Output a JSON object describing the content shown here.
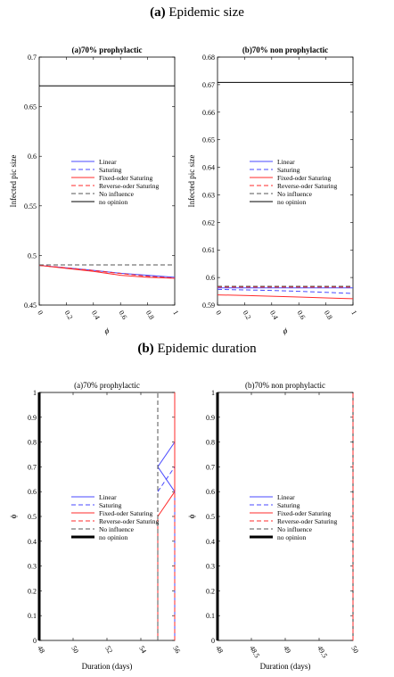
{
  "figure": {
    "heading_a_letter": "(a)",
    "heading_a_text": "Epidemic size",
    "heading_b_letter": "(b)",
    "heading_b_text": "Epidemic duration"
  },
  "legend_styles": [
    {
      "color": "#4a4aff",
      "dash": "",
      "width": 1
    },
    {
      "color": "#4a4aff",
      "dash": "5,3",
      "width": 1
    },
    {
      "color": "#ff2b2b",
      "dash": "",
      "width": 1
    },
    {
      "color": "#ff2b2b",
      "dash": "5,3",
      "width": 1
    },
    {
      "color": "#555555",
      "dash": "5,3",
      "width": 1
    },
    {
      "color": "#000000",
      "dash": "",
      "width": 1
    }
  ],
  "chart_data": [
    {
      "type": "line",
      "title": "(a)70% prophylactic",
      "xlabel": "ϕ",
      "ylabel": "Infected pic size",
      "xlim": [
        0,
        1
      ],
      "ylim": [
        0.45,
        0.7
      ],
      "xticks": [
        0,
        0.2,
        0.4,
        0.6,
        0.8,
        1
      ],
      "xtick_labels": [
        "0",
        "0.2",
        "0.4",
        "0.6",
        "0.8",
        "1"
      ],
      "yticks": [
        0.45,
        0.5,
        0.55,
        0.6,
        0.65,
        0.7
      ],
      "ytick_labels": [
        "0.45",
        "0.5",
        "0.55",
        "0.6",
        "0.65",
        "0.7"
      ],
      "legend": [
        "Linear",
        "Saturing",
        "Fixed-oder Saturing",
        "Reverse-oder Saturing",
        "No influence",
        "no opinion"
      ],
      "series": [
        {
          "name": "Linear",
          "x": [
            0,
            0.2,
            0.4,
            0.6,
            0.8,
            1
          ],
          "y": [
            0.49,
            0.4875,
            0.485,
            0.482,
            0.48,
            0.478
          ]
        },
        {
          "name": "Saturing",
          "x": [
            0,
            0.2,
            0.4,
            0.6,
            0.8,
            1
          ],
          "y": [
            0.49,
            0.4875,
            0.485,
            0.482,
            0.4795,
            0.477
          ]
        },
        {
          "name": "Fixed-oder Saturing",
          "x": [
            0,
            0.2,
            0.4,
            0.6,
            0.8,
            1
          ],
          "y": [
            0.49,
            0.487,
            0.484,
            0.48,
            0.478,
            0.477
          ]
        },
        {
          "name": "Reverse-oder Saturing",
          "x": [
            0,
            0.2,
            0.4,
            0.6,
            0.8,
            1
          ],
          "y": [
            0.49,
            0.4875,
            0.4848,
            0.4818,
            0.479,
            0.4772
          ]
        },
        {
          "name": "No influence",
          "x": [
            0,
            1
          ],
          "y": [
            0.4905,
            0.4905
          ]
        },
        {
          "name": "no opinion",
          "x": [
            0,
            1
          ],
          "y": [
            0.671,
            0.671
          ]
        }
      ]
    },
    {
      "type": "line",
      "title": "(b)70% non prophylactic",
      "xlabel": "ϕ",
      "ylabel": "Infected pic size",
      "xlim": [
        0,
        1
      ],
      "ylim": [
        0.59,
        0.68
      ],
      "xticks": [
        0,
        0.2,
        0.4,
        0.6,
        0.8,
        1
      ],
      "xtick_labels": [
        "0",
        "0.2",
        "0.4",
        "0.6",
        "0.8",
        "1"
      ],
      "yticks": [
        0.59,
        0.6,
        0.61,
        0.62,
        0.63,
        0.64,
        0.65,
        0.66,
        0.67,
        0.68
      ],
      "ytick_labels": [
        "0.59",
        "0.6",
        "0.61",
        "0.62",
        "0.63",
        "0.64",
        "0.65",
        "0.66",
        "0.67",
        "0.68"
      ],
      "legend": [
        "Linear",
        "Saturing",
        "Fixed-oder Saturing",
        "Reverse-oder Saturing",
        "No influence",
        "no opinion"
      ],
      "series": [
        {
          "name": "Linear",
          "x": [
            0,
            1
          ],
          "y": [
            0.5962,
            0.5962
          ]
        },
        {
          "name": "Saturing",
          "x": [
            0,
            0.2,
            0.4,
            0.6,
            0.8,
            1
          ],
          "y": [
            0.5957,
            0.5955,
            0.5953,
            0.595,
            0.5946,
            0.5942
          ]
        },
        {
          "name": "Fixed-oder Saturing",
          "x": [
            0,
            0.2,
            0.4,
            0.6,
            0.8,
            1
          ],
          "y": [
            0.5937,
            0.5935,
            0.5932,
            0.5929,
            0.5926,
            0.5923
          ]
        },
        {
          "name": "Reverse-oder Saturing",
          "x": [
            0,
            1
          ],
          "y": [
            0.5965,
            0.5965
          ]
        },
        {
          "name": "No influence",
          "x": [
            0,
            1
          ],
          "y": [
            0.5968,
            0.5968
          ]
        },
        {
          "name": "no opinion",
          "x": [
            0,
            1
          ],
          "y": [
            0.6708,
            0.6708
          ]
        }
      ]
    },
    {
      "type": "line",
      "title": "(a)70% prophylactic",
      "xlabel": "Duration (days)",
      "ylabel": "ϕ",
      "xlim": [
        48,
        56
      ],
      "ylim": [
        0,
        1
      ],
      "xticks": [
        48,
        50,
        52,
        54,
        56
      ],
      "xtick_labels": [
        "48",
        "50",
        "52",
        "54",
        "56"
      ],
      "yticks": [
        0,
        0.1,
        0.2,
        0.3,
        0.4,
        0.5,
        0.6,
        0.7,
        0.8,
        0.9,
        1
      ],
      "ytick_labels": [
        "0",
        "0.1",
        "0.2",
        "0.3",
        "0.4",
        "0.5",
        "0.6",
        "0.7",
        "0.8",
        "0.9",
        "1"
      ],
      "legend": [
        "Linear",
        "Saturing",
        "Fixed-oder Saturing",
        "Reverse-oder Saturing",
        "No influence",
        "no opinion"
      ],
      "series": [
        {
          "name": "Linear",
          "x": [
            56,
            56,
            55,
            55,
            56
          ],
          "y": [
            0,
            0.6,
            0.7,
            0.7,
            0.8
          ]
        },
        {
          "name": "Saturing",
          "x": [
            55,
            55,
            56
          ],
          "y": [
            0.6,
            0.6,
            0.7
          ]
        },
        {
          "name": "Fixed-oder Saturing",
          "x": [
            55,
            55,
            56,
            56
          ],
          "y": [
            0,
            0.5,
            0.6,
            1
          ]
        },
        {
          "name": "Reverse-oder Saturing",
          "x": [
            56,
            56
          ],
          "y": [
            0,
            1
          ]
        },
        {
          "name": "No influence",
          "x": [
            55,
            55
          ],
          "y": [
            0,
            1
          ]
        },
        {
          "name": "no opinion",
          "x": [
            48,
            48
          ],
          "y": [
            0,
            1
          ]
        }
      ]
    },
    {
      "type": "line",
      "title": "(b)70% non prophylactic",
      "xlabel": "Duration (days)",
      "ylabel": "ϕ",
      "xlim": [
        48,
        50
      ],
      "ylim": [
        0,
        1
      ],
      "xticks": [
        48,
        48.5,
        49,
        49.5,
        50
      ],
      "xtick_labels": [
        "48",
        "48.5",
        "49",
        "49.5",
        "50"
      ],
      "yticks": [
        0,
        0.1,
        0.2,
        0.3,
        0.4,
        0.5,
        0.6,
        0.7,
        0.8,
        0.9,
        1
      ],
      "ytick_labels": [
        "0",
        "0.1",
        "0.2",
        "0.3",
        "0.4",
        "0.5",
        "0.6",
        "0.7",
        "0.8",
        "0.9",
        "1"
      ],
      "legend": [
        "Linear",
        "Saturing",
        "Fixed-oder Saturing",
        "Reverse-oder Saturing",
        "No influence",
        "no opinion"
      ],
      "series": [
        {
          "name": "Reverse-oder Saturing",
          "x": [
            50,
            50
          ],
          "y": [
            0,
            1
          ]
        },
        {
          "name": "no opinion",
          "x": [
            48,
            48
          ],
          "y": [
            0,
            1
          ]
        }
      ]
    }
  ]
}
